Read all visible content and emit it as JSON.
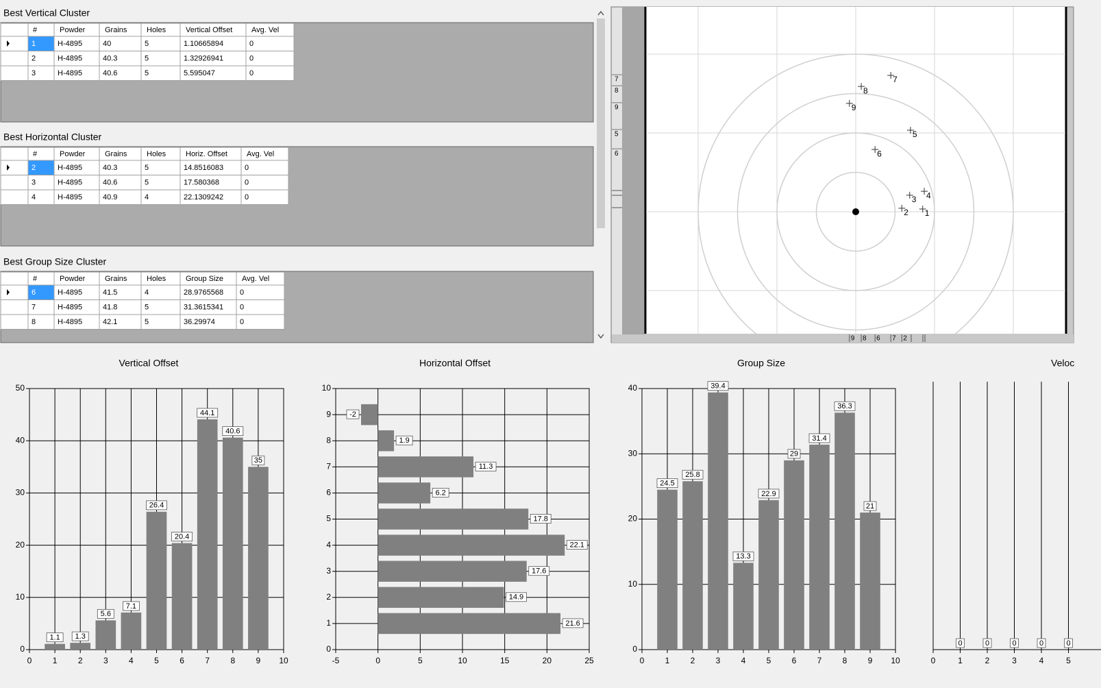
{
  "tables": [
    {
      "title": "Best Vertical Cluster",
      "columns": [
        "#",
        "Powder",
        "Grains",
        "Holes",
        "Vertical Offset",
        "Avg. Vel"
      ],
      "rows": [
        [
          "1",
          "H-4895",
          "40",
          "5",
          "1.10665894",
          "0"
        ],
        [
          "2",
          "H-4895",
          "40.3",
          "5",
          "1.32926941",
          "0"
        ],
        [
          "3",
          "H-4895",
          "40.6",
          "5",
          "5.595047",
          "0"
        ]
      ]
    },
    {
      "title": "Best Horizontal Cluster",
      "columns": [
        "#",
        "Powder",
        "Grains",
        "Holes",
        "Horiz. Offset",
        "Avg. Vel"
      ],
      "rows": [
        [
          "2",
          "H-4895",
          "40.3",
          "5",
          "14.8516083",
          "0"
        ],
        [
          "3",
          "H-4895",
          "40.6",
          "5",
          "17.580368",
          "0"
        ],
        [
          "4",
          "H-4895",
          "40.9",
          "4",
          "22.1309242",
          "0"
        ]
      ]
    },
    {
      "title": "Best Group Size Cluster",
      "columns": [
        "#",
        "Powder",
        "Grains",
        "Holes",
        "Group Size",
        "Avg. Vel"
      ],
      "rows": [
        [
          "6",
          "H-4895",
          "41.5",
          "4",
          "28.9765568",
          "0"
        ],
        [
          "7",
          "H-4895",
          "41.8",
          "5",
          "31.3615341",
          "0"
        ],
        [
          "8",
          "H-4895",
          "42.1",
          "5",
          "36.29974",
          "0"
        ]
      ]
    }
  ],
  "target": {
    "rings": [
      1,
      2,
      3,
      4
    ],
    "gridlines": [
      -4,
      -2,
      0,
      2,
      4
    ],
    "shots": [
      {
        "label": "1",
        "x": 1.7,
        "y": 0.07
      },
      {
        "label": "2",
        "x": 1.17,
        "y": 0.09
      },
      {
        "label": "3",
        "x": 1.37,
        "y": 0.42
      },
      {
        "label": "4",
        "x": 1.74,
        "y": 0.52
      },
      {
        "label": "5",
        "x": 1.39,
        "y": 2.07
      },
      {
        "label": "6",
        "x": 0.49,
        "y": 1.58
      },
      {
        "label": "7",
        "x": 0.89,
        "y": 3.46
      },
      {
        "label": "8",
        "x": 0.14,
        "y": 3.18
      },
      {
        "label": "9",
        "x": -0.16,
        "y": 2.75
      }
    ],
    "left_ruler_labels": [
      "7",
      "8",
      "9",
      "5",
      "6"
    ],
    "bottom_ruler_labels": [
      "9",
      "8",
      "6",
      "7",
      "2"
    ]
  },
  "chart_data": [
    {
      "type": "bar",
      "title": "Vertical Offset",
      "x": [
        1,
        2,
        3,
        4,
        5,
        6,
        7,
        8,
        9
      ],
      "values": [
        1.1,
        1.3,
        5.6,
        7.1,
        26.4,
        20.4,
        44.1,
        40.6,
        35
      ],
      "color": "#808080",
      "xlim": [
        0,
        10
      ],
      "xticks": [
        0,
        1,
        2,
        3,
        4,
        5,
        6,
        7,
        8,
        9,
        10
      ],
      "ylim": [
        0,
        50
      ],
      "yticks": [
        0,
        10,
        20,
        30,
        40,
        50
      ],
      "grid": true
    },
    {
      "type": "barh",
      "title": "Horizontal Offset",
      "y": [
        1,
        2,
        3,
        4,
        5,
        6,
        7,
        8,
        9
      ],
      "values": [
        21.6,
        14.9,
        17.6,
        22.1,
        17.8,
        6.2,
        11.3,
        1.9,
        -2
      ],
      "color": "#808080",
      "xlim": [
        -5,
        25
      ],
      "xticks": [
        -5,
        0,
        5,
        10,
        15,
        20,
        25
      ],
      "ylim": [
        0,
        10
      ],
      "yticks": [
        0,
        1,
        2,
        3,
        4,
        5,
        6,
        7,
        8,
        9,
        10
      ],
      "grid": true
    },
    {
      "type": "bar",
      "title": "Group Size",
      "x": [
        1,
        2,
        3,
        4,
        5,
        6,
        7,
        8,
        9
      ],
      "values": [
        24.5,
        25.8,
        39.4,
        13.3,
        22.9,
        29,
        31.4,
        36.3,
        21
      ],
      "color": "#808080",
      "xlim": [
        0,
        10
      ],
      "xticks": [
        0,
        1,
        2,
        3,
        4,
        5,
        6,
        7,
        8,
        9,
        10
      ],
      "ylim": [
        0,
        40
      ],
      "yticks": [
        0,
        10,
        20,
        30,
        40
      ],
      "grid": true
    },
    {
      "type": "bar",
      "title": "Veloc",
      "x": [
        1,
        2,
        3,
        4,
        5
      ],
      "values": [
        0,
        0,
        0,
        0,
        0
      ],
      "color": "#808080",
      "xlim": [
        0,
        10
      ],
      "xticks": [
        0,
        1,
        2,
        3,
        4,
        5
      ],
      "grid": true
    }
  ]
}
